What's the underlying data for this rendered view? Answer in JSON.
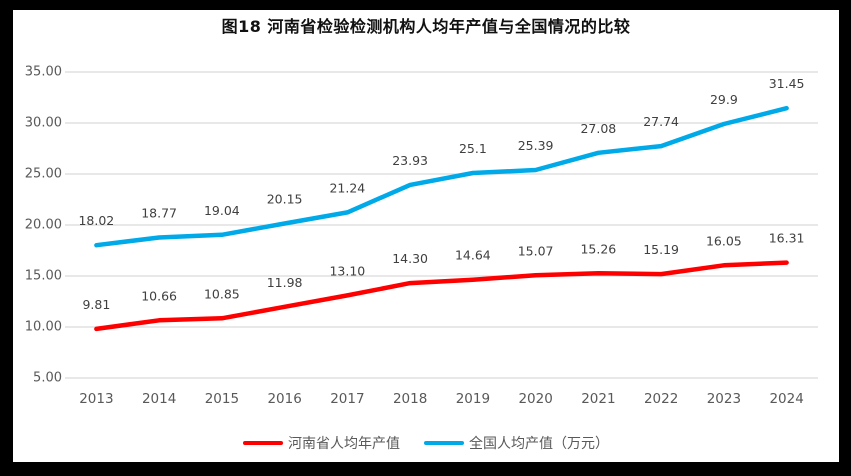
{
  "title": "图18  河南省检验检测机构人均年产值与全国情况的比较",
  "chart_data": {
    "type": "line",
    "title": "图18  河南省检验检测机构人均年产值与全国情况的比较",
    "categories": [
      "2013",
      "2014",
      "2015",
      "2016",
      "2017",
      "2018",
      "2019",
      "2020",
      "2021",
      "2022",
      "2023",
      "2024"
    ],
    "series": [
      {
        "name": "河南省人均年产值",
        "color": "#FF0000",
        "values": [
          9.81,
          10.66,
          10.85,
          11.98,
          13.1,
          14.3,
          14.64,
          15.07,
          15.26,
          15.19,
          16.05,
          16.31
        ],
        "labels": [
          "9.81",
          "10.66",
          "10.85",
          "11.98",
          "13.10",
          "14.30",
          "14.64",
          "15.07",
          "15.26",
          "15.19",
          "16.05",
          "16.31"
        ]
      },
      {
        "name": "全国人均产值（万元）",
        "color": "#00A9E8",
        "values": [
          18.02,
          18.77,
          19.04,
          20.15,
          21.24,
          23.93,
          25.1,
          25.39,
          27.08,
          27.74,
          29.9,
          31.45
        ],
        "labels": [
          "18.02",
          "18.77",
          "19.04",
          "20.15",
          "21.24",
          "23.93",
          "25.1",
          "25.39",
          "27.08",
          "27.74",
          "29.9",
          "31.45"
        ]
      }
    ],
    "xlabel": "",
    "ylabel": "",
    "ylim": [
      5,
      35
    ],
    "y_step": 5,
    "y_ticks": [
      "35.00",
      "30.00",
      "25.00",
      "20.00",
      "15.00",
      "10.00",
      "5.00"
    ],
    "grid": true,
    "legend_position": "bottom",
    "colors": {
      "gridline": "#D9D9D9",
      "axis_text": "#595959",
      "data_label": "#404040",
      "title_text": "#111111",
      "frame": "#000000",
      "canvas": "#ffffff"
    }
  },
  "legend": {
    "items": [
      {
        "label": "河南省人均年产值",
        "color": "#FF0000"
      },
      {
        "label": "全国人均产值（万元）",
        "color": "#00A9E8"
      }
    ]
  }
}
